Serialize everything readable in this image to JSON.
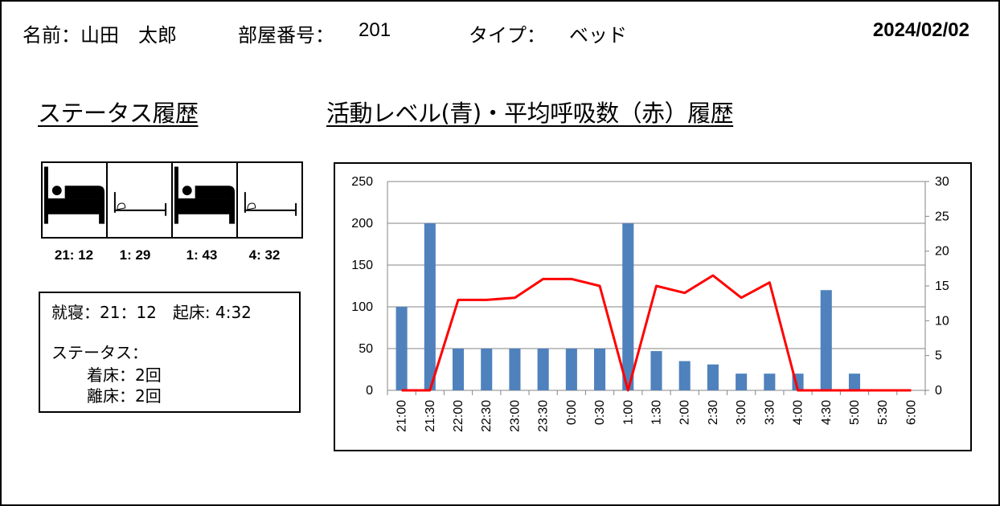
{
  "header": {
    "name_label": "名前：山田　太郎",
    "room_label": "部屋番号：",
    "room_value": "201",
    "type_label": "タイプ：",
    "type_value": "ベッド",
    "date": "2024/02/02"
  },
  "status_section": {
    "title": "ステータス履歴",
    "events": [
      {
        "icon": "in-bed-icon",
        "time": "21: 12"
      },
      {
        "icon": "empty-bed-icon",
        "time": "1: 29"
      },
      {
        "icon": "in-bed-icon",
        "time": "1: 43"
      },
      {
        "icon": "empty-bed-icon",
        "time": "4: 32"
      }
    ],
    "summary": {
      "sleep_line": "就寝：21：12　起床: 4:32",
      "status_label": "ステータス：",
      "in_bed": "着床：2回",
      "out_bed": "離床：2回"
    }
  },
  "chart_section": {
    "title": "活動レベル(青)・平均呼吸数（赤）履歴"
  },
  "chart_data": {
    "type": "bar",
    "categories": [
      "21:00",
      "21:30",
      "22:00",
      "22:30",
      "23:00",
      "23:30",
      "0:00",
      "0:30",
      "1:00",
      "1:30",
      "2:00",
      "2:30",
      "3:00",
      "3:30",
      "4:00",
      "4:30",
      "5:00",
      "5:30",
      "6:00"
    ],
    "series": [
      {
        "name": "活動レベル",
        "type": "bar",
        "axis": "left",
        "color": "#4F81BD",
        "values": [
          100,
          200,
          50,
          50,
          50,
          50,
          50,
          50,
          200,
          47,
          35,
          31,
          20,
          20,
          20,
          120,
          20,
          0,
          0
        ]
      },
      {
        "name": "平均呼吸数",
        "type": "line",
        "axis": "right",
        "color": "#FF0000",
        "values": [
          0,
          0,
          13,
          13,
          13.3,
          16,
          16,
          15,
          0,
          15,
          14,
          16.5,
          13.3,
          15.5,
          0,
          0,
          0,
          0,
          0
        ]
      }
    ],
    "ylim_left": [
      0,
      250
    ],
    "yticks_left": [
      0,
      50,
      100,
      150,
      200,
      250
    ],
    "ylim_right": [
      0,
      30
    ],
    "yticks_right": [
      0,
      5,
      10,
      15,
      20,
      25,
      30
    ],
    "grid": true
  },
  "colors": {
    "bar": "#4F81BD",
    "line": "#FF0000",
    "grid": "#868686"
  }
}
